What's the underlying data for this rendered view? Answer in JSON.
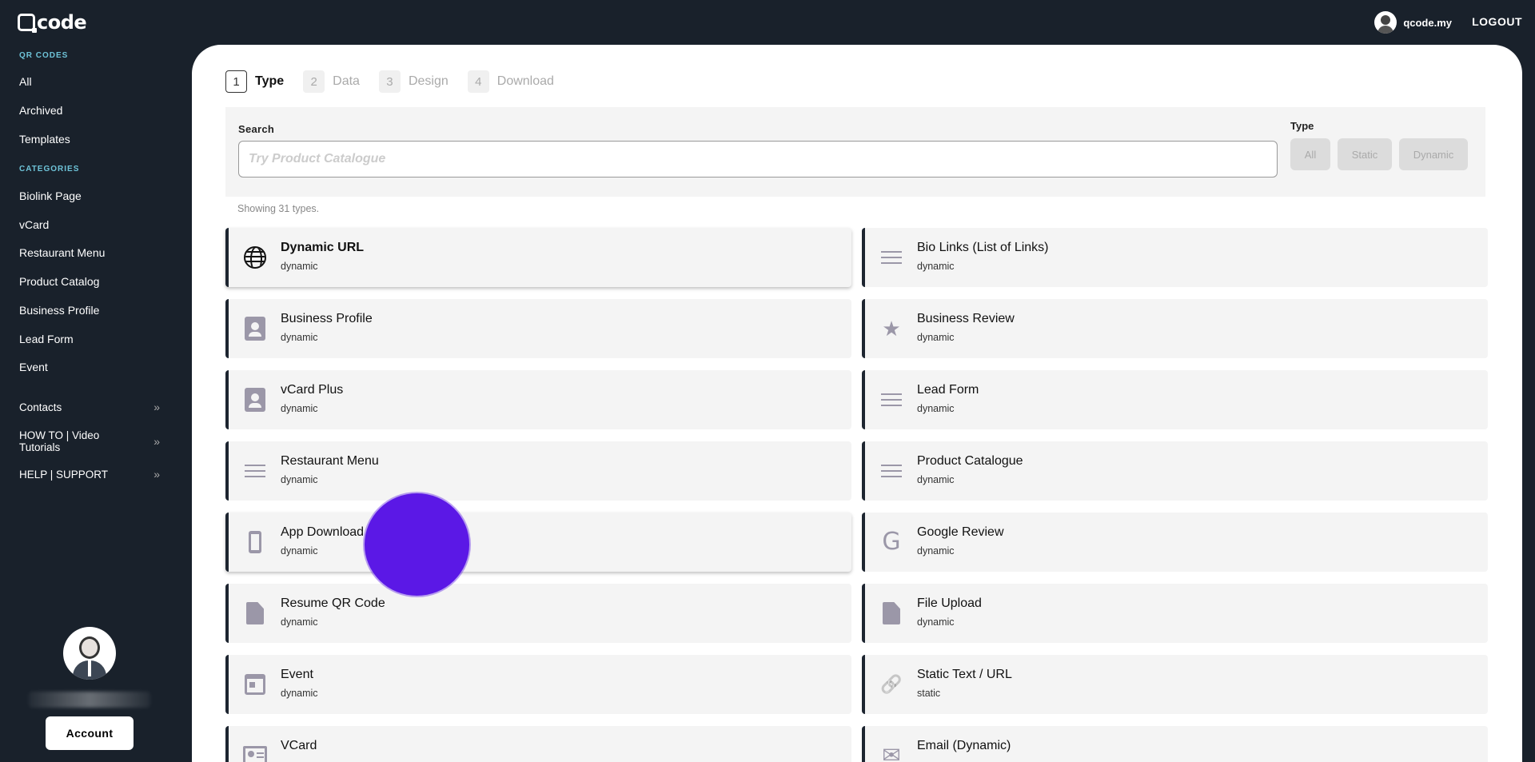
{
  "header": {
    "logo_text": "code",
    "user_name": "qcode.my",
    "logout_label": "LOGOUT"
  },
  "sidebar": {
    "section_qr": "QR CODES",
    "qr_items": [
      "All",
      "Archived",
      "Templates"
    ],
    "section_categories": "CATEGORIES",
    "category_items": [
      "Biolink Page",
      "vCard",
      "Restaurant Menu",
      "Product Catalog",
      "Business Profile",
      "Lead Form",
      "Event"
    ],
    "expandables": [
      {
        "label": "Contacts",
        "chevron": "»"
      },
      {
        "label": "HOW TO | Video Tutorials",
        "chevron": "»"
      },
      {
        "label": "HELP | SUPPORT",
        "chevron": "»"
      }
    ],
    "account_label": "Account"
  },
  "steps": [
    {
      "num": "1",
      "label": "Type",
      "active": true
    },
    {
      "num": "2",
      "label": "Data",
      "active": false
    },
    {
      "num": "3",
      "label": "Design",
      "active": false
    },
    {
      "num": "4",
      "label": "Download",
      "active": false
    }
  ],
  "search": {
    "label": "Search",
    "placeholder": "Try Product Catalogue",
    "value": "",
    "type_label": "Type",
    "type_buttons": [
      "All",
      "Static",
      "Dynamic"
    ]
  },
  "showing_text": "Showing 31 types.",
  "types": [
    {
      "title": "Dynamic URL",
      "sub": "dynamic",
      "icon": "globe-icon"
    },
    {
      "title": "Bio Links (List of Links)",
      "sub": "dynamic",
      "icon": "list-icon"
    },
    {
      "title": "Business Profile",
      "sub": "dynamic",
      "icon": "contact-icon"
    },
    {
      "title": "Business Review",
      "sub": "dynamic",
      "icon": "star-icon",
      "glyph": "★"
    },
    {
      "title": "vCard Plus",
      "sub": "dynamic",
      "icon": "contact-icon"
    },
    {
      "title": "Lead Form",
      "sub": "dynamic",
      "icon": "list-icon"
    },
    {
      "title": "Restaurant Menu",
      "sub": "dynamic",
      "icon": "list-icon"
    },
    {
      "title": "Product Catalogue",
      "sub": "dynamic",
      "icon": "list-icon"
    },
    {
      "title": "App Download",
      "sub": "dynamic",
      "icon": "phone-icon"
    },
    {
      "title": "Google Review",
      "sub": "dynamic",
      "icon": "google-icon",
      "glyph": "G"
    },
    {
      "title": "Resume QR Code",
      "sub": "dynamic",
      "icon": "file-icon"
    },
    {
      "title": "File Upload",
      "sub": "dynamic",
      "icon": "file-upload-icon"
    },
    {
      "title": "Event",
      "sub": "dynamic",
      "icon": "calendar-icon"
    },
    {
      "title": "Static Text / URL",
      "sub": "static",
      "icon": "link-icon",
      "glyph": "🔗"
    },
    {
      "title": "VCard",
      "sub": "",
      "icon": "vcard-icon"
    },
    {
      "title": "Email (Dynamic)",
      "sub": "",
      "icon": "email-icon",
      "glyph": "✉"
    }
  ],
  "colors": {
    "sidebar_bg": "#19212b",
    "accent_section": "#6ec3d8",
    "icon_muted": "#9b97a8",
    "cursor_marker": "#5b18e6"
  }
}
